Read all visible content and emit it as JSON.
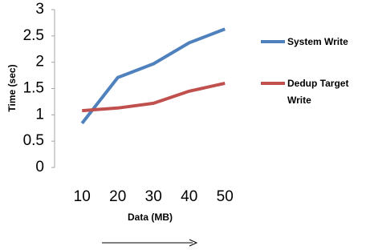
{
  "chart_data": {
    "type": "line",
    "x_label": "Data (MB)",
    "y_label": "Time (sec)",
    "categories": [
      "10",
      "20",
      "30",
      "40",
      "50"
    ],
    "series": [
      {
        "name": "System Write",
        "color": "#4f81bd",
        "values": [
          0.84,
          1.71,
          1.97,
          2.37,
          2.63
        ]
      },
      {
        "name": "Dedup Target Write",
        "color": "#c0504d",
        "values": [
          1.08,
          1.13,
          1.22,
          1.45,
          1.6
        ]
      }
    ],
    "ylim": [
      0,
      3
    ],
    "yticks": [
      0,
      0.5,
      1,
      1.5,
      2,
      2.5,
      3
    ],
    "grid": false,
    "legend": "right"
  }
}
